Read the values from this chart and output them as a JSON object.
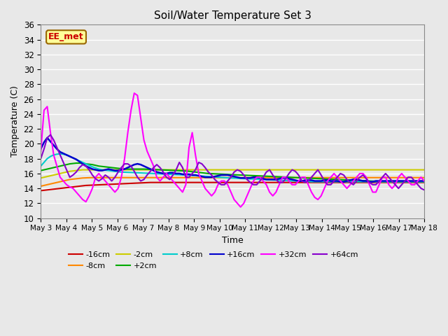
{
  "title": "Soil/Water Temperature Set 3",
  "xlabel": "Time",
  "ylabel": "Temperature (C)",
  "ylim": [
    10,
    36
  ],
  "yticks": [
    10,
    12,
    14,
    16,
    18,
    20,
    22,
    24,
    26,
    28,
    30,
    32,
    34,
    36
  ],
  "x_labels": [
    "May 3",
    "May 4",
    "May 5",
    "May 6",
    "May 7",
    "May 8",
    "May 9",
    "May 10",
    "May 11",
    "May 12",
    "May 13",
    "May 14",
    "May 15",
    "May 16",
    "May 17",
    "May 18"
  ],
  "annotation_text": "EE_met",
  "annotation_color": "#cc0000",
  "annotation_bg": "#ffff99",
  "annotation_border": "#996600",
  "bg_color": "#e8e8e8",
  "series_order": [
    "-16cm",
    "-8cm",
    "-2cm",
    "+2cm",
    "+8cm",
    "+16cm",
    "+32cm",
    "+64cm"
  ],
  "series": {
    "-16cm": {
      "color": "#cc0000",
      "linewidth": 1.5,
      "data": [
        13.7,
        13.75,
        13.8,
        13.85,
        13.9,
        13.95,
        14.0,
        14.05,
        14.1,
        14.15,
        14.2,
        14.25,
        14.3,
        14.35,
        14.4,
        14.42,
        14.44,
        14.46,
        14.48,
        14.5,
        14.52,
        14.54,
        14.56,
        14.58,
        14.6,
        14.62,
        14.64,
        14.66,
        14.68,
        14.7,
        14.72,
        14.74,
        14.76,
        14.78,
        14.8,
        14.8,
        14.8,
        14.8,
        14.8,
        14.8,
        14.8,
        14.8,
        14.8,
        14.8,
        14.8,
        14.8,
        14.8,
        14.8,
        14.8,
        14.8,
        14.8,
        14.8,
        14.8,
        14.8,
        14.8,
        14.8,
        14.8,
        14.8,
        14.8,
        14.8,
        14.8,
        14.8,
        14.8,
        14.8,
        14.8,
        14.8,
        14.8,
        14.8,
        14.8,
        14.8,
        14.8,
        14.8,
        14.8,
        14.8,
        14.8,
        14.8,
        14.8,
        14.8,
        14.8,
        14.8,
        14.8,
        14.8,
        14.8,
        14.8,
        14.8,
        14.8,
        14.8,
        14.8,
        14.8,
        14.8,
        14.8,
        14.8,
        14.8,
        14.8,
        14.8,
        14.8,
        14.8,
        14.8,
        14.8,
        14.8,
        14.8,
        14.8,
        14.8,
        14.8,
        14.8,
        14.8,
        14.8,
        14.8,
        14.8,
        14.8,
        14.8,
        14.8,
        14.8,
        14.8,
        14.8,
        14.8,
        14.8,
        14.8,
        14.8,
        14.8
      ]
    },
    "-8cm": {
      "color": "#ff8800",
      "linewidth": 1.5,
      "data": [
        14.3,
        14.4,
        14.5,
        14.6,
        14.7,
        14.8,
        14.9,
        15.0,
        15.1,
        15.2,
        15.25,
        15.3,
        15.35,
        15.4,
        15.42,
        15.44,
        15.45,
        15.45,
        15.45,
        15.45,
        15.45,
        15.45,
        15.45,
        15.45,
        15.45,
        15.45,
        15.45,
        15.45,
        15.45,
        15.45,
        15.45,
        15.45,
        15.45,
        15.45,
        15.45,
        15.45,
        15.45,
        15.45,
        15.45,
        15.45,
        15.45,
        15.45,
        15.45,
        15.45,
        15.45,
        15.45,
        15.45,
        15.45,
        15.45,
        15.45,
        15.45,
        15.45,
        15.45,
        15.45,
        15.45,
        15.45,
        15.45,
        15.45,
        15.45,
        15.45,
        15.45,
        15.45,
        15.45,
        15.45,
        15.45,
        15.45,
        15.45,
        15.45,
        15.45,
        15.45,
        15.45,
        15.45,
        15.45,
        15.45,
        15.45,
        15.45,
        15.45,
        15.45,
        15.45,
        15.45,
        15.45,
        15.45,
        15.45,
        15.45,
        15.45,
        15.45,
        15.45,
        15.45,
        15.45,
        15.45,
        15.45,
        15.45,
        15.45,
        15.45,
        15.45,
        15.45,
        15.45,
        15.45,
        15.45,
        15.45,
        15.45,
        15.45,
        15.45,
        15.45,
        15.45,
        15.45,
        15.45,
        15.45,
        15.45,
        15.45,
        15.45,
        15.45,
        15.45,
        15.45,
        15.45,
        15.45,
        15.45,
        15.45,
        15.45,
        15.45
      ]
    },
    "-2cm": {
      "color": "#cccc00",
      "linewidth": 1.5,
      "data": [
        15.4,
        15.5,
        15.6,
        15.7,
        15.8,
        15.9,
        16.0,
        16.1,
        16.2,
        16.3,
        16.35,
        16.4,
        16.45,
        16.5,
        16.5,
        16.5,
        16.5,
        16.5,
        16.5,
        16.5,
        16.5,
        16.5,
        16.5,
        16.5,
        16.5,
        16.5,
        16.5,
        16.5,
        16.5,
        16.5,
        16.5,
        16.5,
        16.5,
        16.5,
        16.5,
        16.5,
        16.5,
        16.5,
        16.5,
        16.5,
        16.5,
        16.5,
        16.5,
        16.5,
        16.5,
        16.5,
        16.5,
        16.5,
        16.5,
        16.5,
        16.5,
        16.5,
        16.5,
        16.5,
        16.5,
        16.5,
        16.5,
        16.5,
        16.5,
        16.5,
        16.5,
        16.5,
        16.5,
        16.5,
        16.5,
        16.5,
        16.5,
        16.5,
        16.5,
        16.5,
        16.5,
        16.5,
        16.5,
        16.5,
        16.5,
        16.5,
        16.5,
        16.5,
        16.5,
        16.5,
        16.5,
        16.5,
        16.5,
        16.5,
        16.5,
        16.5,
        16.5,
        16.5,
        16.5,
        16.5,
        16.5,
        16.5,
        16.5,
        16.5,
        16.5,
        16.5,
        16.5,
        16.5,
        16.5,
        16.5,
        16.5,
        16.5,
        16.5,
        16.5,
        16.5,
        16.5,
        16.5,
        16.5,
        16.5,
        16.5,
        16.5,
        16.5,
        16.5,
        16.5,
        16.5,
        16.5,
        16.5,
        16.5,
        16.5,
        16.5
      ]
    },
    "+2cm": {
      "color": "#00aa00",
      "linewidth": 1.5,
      "data": [
        16.4,
        16.5,
        16.6,
        16.7,
        16.8,
        16.9,
        17.0,
        17.1,
        17.2,
        17.3,
        17.35,
        17.4,
        17.4,
        17.35,
        17.3,
        17.25,
        17.2,
        17.1,
        17.0,
        16.95,
        16.9,
        16.85,
        16.8,
        16.75,
        16.7,
        16.65,
        16.6,
        16.6,
        16.6,
        16.6,
        16.6,
        16.6,
        16.6,
        16.58,
        16.56,
        16.54,
        16.52,
        16.5,
        16.48,
        16.46,
        16.44,
        16.42,
        16.4,
        16.38,
        16.36,
        16.34,
        16.3,
        16.25,
        16.2,
        16.15,
        16.1,
        16.05,
        16.0,
        15.98,
        15.96,
        15.94,
        15.92,
        15.9,
        15.88,
        15.86,
        15.84,
        15.82,
        15.8,
        15.78,
        15.76,
        15.74,
        15.72,
        15.7,
        15.68,
        15.66,
        15.64,
        15.62,
        15.6,
        15.58,
        15.56,
        15.54,
        15.52,
        15.5,
        15.48,
        15.46,
        15.44,
        15.42,
        15.4,
        15.38,
        15.36,
        15.34,
        15.32,
        15.3,
        15.28,
        15.26,
        15.24,
        15.22,
        15.2,
        15.18,
        15.16,
        15.14,
        15.12,
        15.1,
        15.08,
        15.06,
        15.04,
        15.02,
        15.0,
        14.98,
        14.96,
        14.94,
        14.92,
        14.9,
        14.9,
        14.9,
        14.9,
        14.9,
        14.9,
        14.9,
        14.9,
        14.9,
        14.9,
        14.9,
        14.9,
        14.9
      ]
    },
    "+8cm": {
      "color": "#00cccc",
      "linewidth": 1.5,
      "data": [
        17.0,
        17.5,
        18.0,
        18.3,
        18.5,
        18.6,
        18.65,
        18.6,
        18.5,
        18.3,
        18.1,
        17.9,
        17.7,
        17.5,
        17.3,
        17.1,
        16.9,
        16.75,
        16.6,
        16.5,
        16.45,
        16.4,
        16.35,
        16.3,
        16.25,
        16.2,
        16.18,
        16.16,
        16.14,
        16.12,
        16.1,
        16.08,
        16.06,
        16.04,
        16.02,
        16.0,
        15.98,
        15.96,
        15.94,
        15.92,
        15.9,
        15.88,
        15.86,
        15.84,
        15.82,
        15.8,
        15.78,
        15.75,
        15.72,
        15.69,
        15.66,
        15.63,
        15.6,
        15.57,
        15.54,
        15.51,
        15.48,
        15.45,
        15.42,
        15.4,
        15.38,
        15.36,
        15.34,
        15.32,
        15.3,
        15.28,
        15.26,
        15.24,
        15.22,
        15.2,
        15.18,
        15.16,
        15.14,
        15.12,
        15.1,
        15.08,
        15.06,
        15.04,
        15.02,
        15.0,
        14.98,
        14.96,
        14.94,
        14.92,
        14.9,
        14.9,
        14.9,
        14.9,
        14.9,
        14.9,
        14.9,
        14.9,
        14.9,
        14.9,
        14.9,
        14.9,
        14.9,
        14.9,
        14.9,
        14.9,
        14.9,
        14.9,
        14.9,
        14.9,
        14.9,
        14.9,
        14.9,
        14.9,
        14.9,
        14.9,
        14.9,
        14.9,
        14.9,
        14.9,
        14.9,
        14.9,
        14.9,
        14.9,
        14.9,
        14.9
      ]
    },
    "+16cm": {
      "color": "#0000cc",
      "linewidth": 1.8,
      "data": [
        19.3,
        20.2,
        20.8,
        20.3,
        19.8,
        19.3,
        18.9,
        18.7,
        18.5,
        18.3,
        18.1,
        17.9,
        17.6,
        17.3,
        17.0,
        16.8,
        16.6,
        16.5,
        16.4,
        16.4,
        16.5,
        16.6,
        16.5,
        16.4,
        16.4,
        16.5,
        16.6,
        16.8,
        17.0,
        17.2,
        17.3,
        17.2,
        17.0,
        16.8,
        16.6,
        16.4,
        16.2,
        16.1,
        16.0,
        16.0,
        16.1,
        16.1,
        16.0,
        16.0,
        15.9,
        15.9,
        15.9,
        15.8,
        15.8,
        15.7,
        15.6,
        15.5,
        15.5,
        15.5,
        15.6,
        15.7,
        15.8,
        15.8,
        15.8,
        15.7,
        15.6,
        15.5,
        15.4,
        15.4,
        15.4,
        15.4,
        15.5,
        15.5,
        15.4,
        15.3,
        15.2,
        15.2,
        15.2,
        15.2,
        15.3,
        15.4,
        15.4,
        15.3,
        15.2,
        15.1,
        15.0,
        15.0,
        15.1,
        15.1,
        15.1,
        15.0,
        15.0,
        15.0,
        15.1,
        15.1,
        15.0,
        15.0,
        15.0,
        14.9,
        14.9,
        15.0,
        15.1,
        15.2,
        15.2,
        15.1,
        15.0,
        15.0,
        14.9,
        14.9,
        15.0,
        15.0,
        15.0,
        15.0,
        15.0,
        15.0,
        15.0,
        15.0,
        15.0,
        15.0,
        15.0,
        15.0,
        15.0,
        15.0,
        15.0,
        15.0
      ]
    },
    "+32cm": {
      "color": "#ff00ff",
      "linewidth": 1.5,
      "data": [
        19.0,
        24.5,
        25.0,
        21.5,
        18.5,
        17.0,
        15.5,
        15.0,
        14.5,
        14.2,
        14.0,
        13.5,
        13.0,
        12.5,
        12.2,
        13.0,
        14.0,
        15.5,
        16.0,
        15.5,
        15.0,
        14.5,
        14.0,
        13.5,
        14.0,
        15.5,
        18.0,
        21.5,
        24.5,
        26.8,
        26.5,
        23.5,
        20.5,
        19.0,
        18.0,
        17.0,
        15.5,
        15.0,
        15.5,
        16.0,
        15.5,
        15.0,
        14.5,
        14.0,
        13.5,
        14.5,
        19.5,
        21.5,
        18.5,
        16.0,
        15.0,
        14.0,
        13.5,
        13.0,
        13.5,
        14.5,
        15.0,
        15.0,
        14.5,
        13.5,
        12.5,
        12.0,
        11.5,
        12.0,
        13.0,
        14.0,
        15.0,
        15.5,
        15.5,
        15.0,
        14.5,
        13.5,
        13.0,
        13.5,
        14.5,
        15.5,
        15.5,
        15.0,
        14.5,
        14.5,
        15.0,
        15.5,
        15.5,
        14.5,
        13.5,
        12.8,
        12.5,
        13.0,
        14.0,
        15.0,
        15.5,
        16.0,
        15.5,
        15.0,
        14.5,
        14.0,
        14.5,
        15.0,
        15.5,
        16.0,
        16.0,
        15.5,
        14.5,
        13.5,
        13.5,
        14.5,
        15.5,
        15.5,
        14.5,
        14.0,
        14.5,
        15.5,
        16.0,
        15.5,
        15.0,
        14.5,
        14.5,
        15.0,
        15.5,
        15.0
      ]
    },
    "+64cm": {
      "color": "#8800cc",
      "linewidth": 1.5,
      "data": [
        18.0,
        19.3,
        20.8,
        21.2,
        20.5,
        19.5,
        18.5,
        17.5,
        16.5,
        15.5,
        15.8,
        16.2,
        16.8,
        17.2,
        17.0,
        16.5,
        15.8,
        15.3,
        15.0,
        15.3,
        15.8,
        15.5,
        15.0,
        15.5,
        16.2,
        16.8,
        17.3,
        17.3,
        17.0,
        16.3,
        15.5,
        15.0,
        15.2,
        15.8,
        16.3,
        16.8,
        17.2,
        16.8,
        16.2,
        15.5,
        15.2,
        15.8,
        16.5,
        17.5,
        16.8,
        15.5,
        15.5,
        16.0,
        16.5,
        17.5,
        17.3,
        16.8,
        16.2,
        15.8,
        15.2,
        14.8,
        14.5,
        14.5,
        15.0,
        15.5,
        16.2,
        16.5,
        16.3,
        15.8,
        15.2,
        14.8,
        14.5,
        14.5,
        15.0,
        15.5,
        16.2,
        16.5,
        15.8,
        15.2,
        14.8,
        14.8,
        15.3,
        16.0,
        16.5,
        16.3,
        15.8,
        15.0,
        14.8,
        15.0,
        15.5,
        16.0,
        16.5,
        15.8,
        15.0,
        14.5,
        14.5,
        15.0,
        15.5,
        16.0,
        15.8,
        15.2,
        14.8,
        14.5,
        15.0,
        15.5,
        15.8,
        15.3,
        14.8,
        14.5,
        14.5,
        15.0,
        15.5,
        16.0,
        15.5,
        15.0,
        14.5,
        14.0,
        14.5,
        15.0,
        15.5,
        15.5,
        15.0,
        14.5,
        14.0,
        13.8
      ]
    }
  }
}
